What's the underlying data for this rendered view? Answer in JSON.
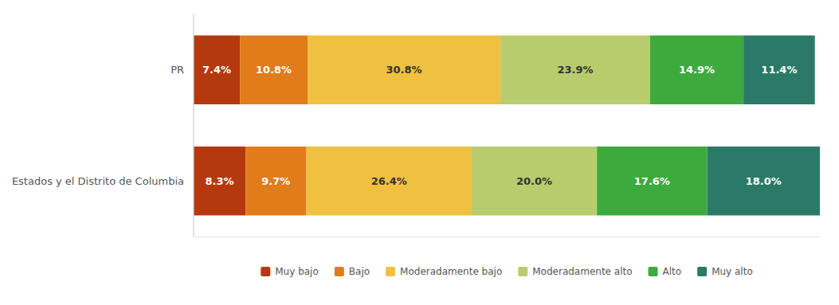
{
  "chart_data": {
    "type": "bar",
    "orientation": "horizontal",
    "stacked": true,
    "data_labels": true,
    "tick_labels": "y",
    "grid": false,
    "legend": "bottom",
    "categories": [
      "PR",
      "Estados y el Distrito de Columbia"
    ],
    "xlim": [
      0,
      100
    ],
    "series": [
      {
        "name": "Muy bajo",
        "color": "#b5390f",
        "values": [
          7.4,
          8.3
        ],
        "value_labels": [
          "7.4%",
          "8.3%"
        ]
      },
      {
        "name": "Bajo",
        "color": "#e07c1a",
        "values": [
          10.8,
          9.7
        ],
        "value_labels": [
          "10.8%",
          "9.7%"
        ]
      },
      {
        "name": "Moderadamente bajo",
        "color": "#f0c040",
        "values": [
          30.8,
          26.4
        ],
        "value_labels": [
          "30.8%",
          "26.4%"
        ]
      },
      {
        "name": "Moderadamente alto",
        "color": "#b8cc6e",
        "values": [
          23.9,
          20.0
        ],
        "value_labels": [
          "23.9%",
          "20.0%"
        ]
      },
      {
        "name": "Alto",
        "color": "#3daa3d",
        "values": [
          14.9,
          17.6
        ],
        "value_labels": [
          "14.9%",
          "17.6%"
        ]
      },
      {
        "name": "Muy alto",
        "color": "#2b7a68",
        "values": [
          11.4,
          18.0
        ],
        "value_labels": [
          "11.4%",
          "18.0%"
        ]
      }
    ]
  }
}
